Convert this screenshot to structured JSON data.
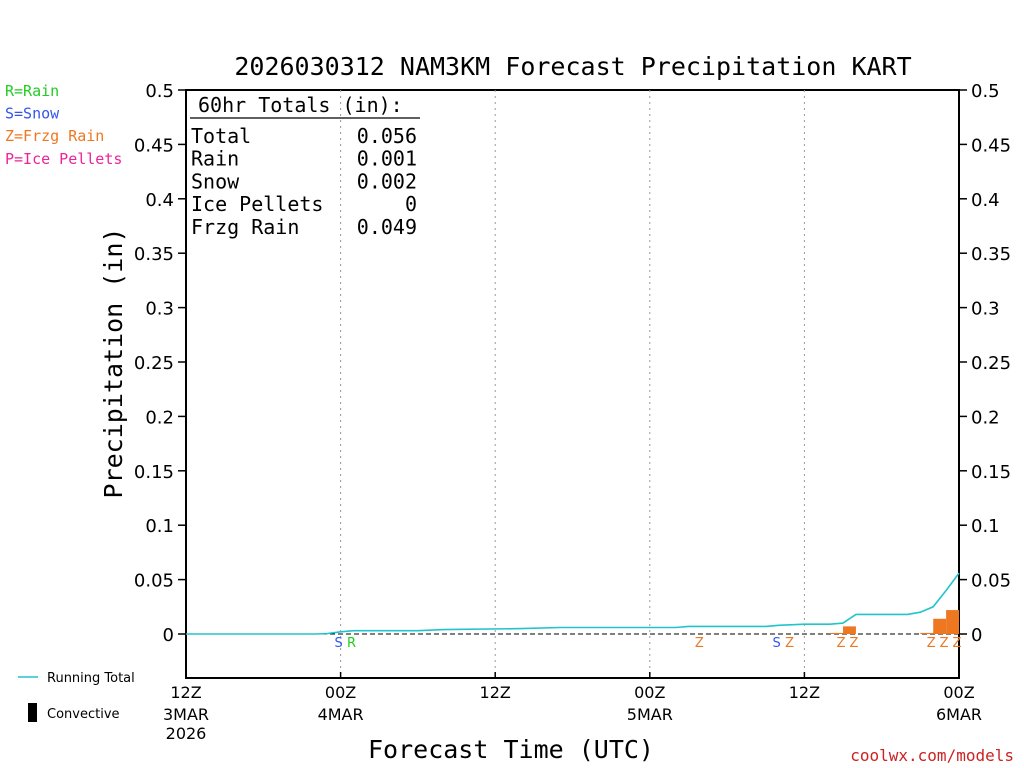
{
  "chart_data": {
    "type": "bar",
    "title": "2026030312 NAM3KM Forecast Precipitation KART",
    "xlabel": "Forecast Time (UTC)",
    "ylabel": "Precipitation (in)",
    "ylim": [
      -0.04,
      0.5
    ],
    "yticks": [
      "0.5",
      "0.45",
      "0.4",
      "0.35",
      "0.3",
      "0.25",
      "0.2",
      "0.15",
      "0.1",
      "0.05",
      "0"
    ],
    "ytick_values": [
      0.5,
      0.45,
      0.4,
      0.35,
      0.3,
      0.25,
      0.2,
      0.15,
      0.1,
      0.05,
      0
    ],
    "xlim_hours": [
      0,
      60
    ],
    "xticks": [
      {
        "hour": 0,
        "time": "12Z",
        "date": "3MAR",
        "year": "2026"
      },
      {
        "hour": 12,
        "time": "00Z",
        "date": "4MAR",
        "year": ""
      },
      {
        "hour": 24,
        "time": "12Z",
        "date": "",
        "year": ""
      },
      {
        "hour": 36,
        "time": "00Z",
        "date": "5MAR",
        "year": ""
      },
      {
        "hour": 48,
        "time": "12Z",
        "date": "",
        "year": ""
      },
      {
        "hour": 60,
        "time": "00Z",
        "date": "6MAR",
        "year": ""
      }
    ],
    "legend_types": [
      {
        "text": "R=Rain",
        "color": "#22cc22"
      },
      {
        "text": "S=Snow",
        "color": "#3355ee"
      },
      {
        "text": "Z=Frzg Rain",
        "color": "#ee7722"
      },
      {
        "text": "P=Ice Pellets",
        "color": "#ee2299"
      }
    ],
    "legend_lines": [
      {
        "text": "Running Total",
        "color": "#22c4cc"
      },
      {
        "text": "Convective",
        "color": "#000000"
      }
    ],
    "totals": {
      "header": "60hr Totals (in):",
      "rows": [
        {
          "label": "Total",
          "value": "0.056"
        },
        {
          "label": "Rain",
          "value": "0.001"
        },
        {
          "label": "Snow",
          "value": "0.002"
        },
        {
          "label": "Ice Pellets",
          "value": "0"
        },
        {
          "label": "Frzg Rain",
          "value": "0.049"
        }
      ]
    },
    "hourly_bars": [
      {
        "hour": 51,
        "value": 0.001
      },
      {
        "hour": 52,
        "value": 0.007
      },
      {
        "hour": 58,
        "value": 0.001
      },
      {
        "hour": 59,
        "value": 0.014
      },
      {
        "hour": 60,
        "value": 0.022
      }
    ],
    "running_total": [
      [
        0,
        0
      ],
      [
        10,
        0
      ],
      [
        11,
        0.0005
      ],
      [
        12,
        0.002
      ],
      [
        13,
        0.003
      ],
      [
        14,
        0.003
      ],
      [
        18,
        0.003
      ],
      [
        20,
        0.004
      ],
      [
        26,
        0.005
      ],
      [
        29,
        0.006
      ],
      [
        38,
        0.006
      ],
      [
        39,
        0.007
      ],
      [
        45,
        0.007
      ],
      [
        46,
        0.008
      ],
      [
        48,
        0.009
      ],
      [
        50,
        0.009
      ],
      [
        51,
        0.01
      ],
      [
        52,
        0.018
      ],
      [
        56,
        0.018
      ],
      [
        57,
        0.02
      ],
      [
        58,
        0.025
      ],
      [
        59,
        0.04
      ],
      [
        60,
        0.056
      ]
    ],
    "ptype_markers": [
      {
        "hour": 12,
        "letter": "S",
        "color": "#3355ee"
      },
      {
        "hour": 13,
        "letter": "R",
        "color": "#22cc22"
      },
      {
        "hour": 40,
        "letter": "Z",
        "color": "#ee7722"
      },
      {
        "hour": 46,
        "letter": "S",
        "color": "#3355ee"
      },
      {
        "hour": 47,
        "letter": "Z",
        "color": "#ee7722"
      },
      {
        "hour": 51,
        "letter": "Z",
        "color": "#ee7722"
      },
      {
        "hour": 52,
        "letter": "Z",
        "color": "#ee7722"
      },
      {
        "hour": 58,
        "letter": "Z",
        "color": "#ee7722"
      },
      {
        "hour": 59,
        "letter": "Z",
        "color": "#ee7722"
      },
      {
        "hour": 60,
        "letter": "Z",
        "color": "#ee7722"
      }
    ],
    "bar_color": "#ee7722",
    "running_total_color": "#22c4cc"
  },
  "credit": "coolwx.com/models"
}
